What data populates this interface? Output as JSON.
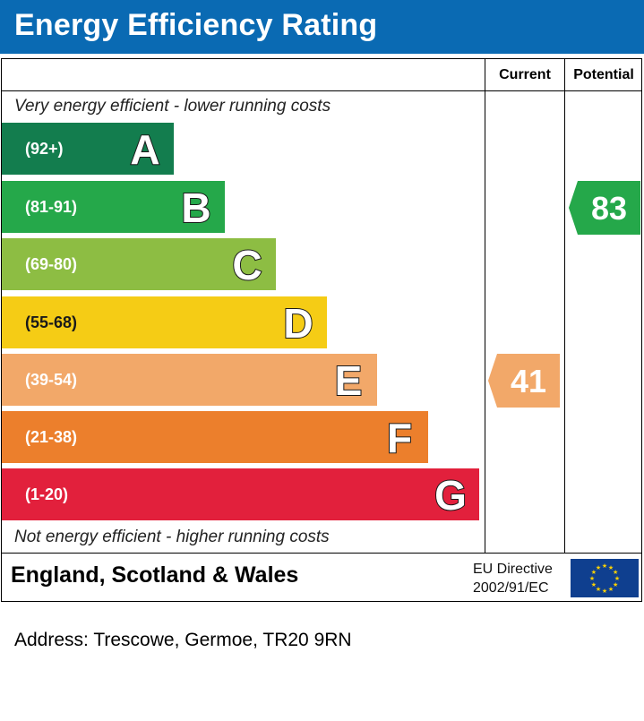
{
  "header": {
    "title": "Energy Efficiency Rating"
  },
  "columns": {
    "current": "Current",
    "potential": "Potential"
  },
  "notes": {
    "top": "Very energy efficient - lower running costs",
    "bottom": "Not energy efficient - higher running costs"
  },
  "chart_data": {
    "type": "bar",
    "title": "Energy Efficiency Rating",
    "categories": [
      "A",
      "B",
      "C",
      "D",
      "E",
      "F",
      "G"
    ],
    "ranges": [
      "(92+)",
      "(81-91)",
      "(69-80)",
      "(55-68)",
      "(39-54)",
      "(21-38)",
      "(1-20)"
    ],
    "colors": [
      "#137d4e",
      "#25a84a",
      "#8dbd43",
      "#f5cc15",
      "#f2a869",
      "#ec7f2c",
      "#e2203c"
    ],
    "current": {
      "value": 41,
      "band": "E",
      "color": "#f2a869"
    },
    "potential": {
      "value": 83,
      "band": "B",
      "color": "#25a84a"
    }
  },
  "footer": {
    "country": "England, Scotland & Wales",
    "eu_line1": "EU Directive",
    "eu_line2": "2002/91/EC"
  },
  "address": "Address: Trescowe, Germoe, TR20 9RN"
}
